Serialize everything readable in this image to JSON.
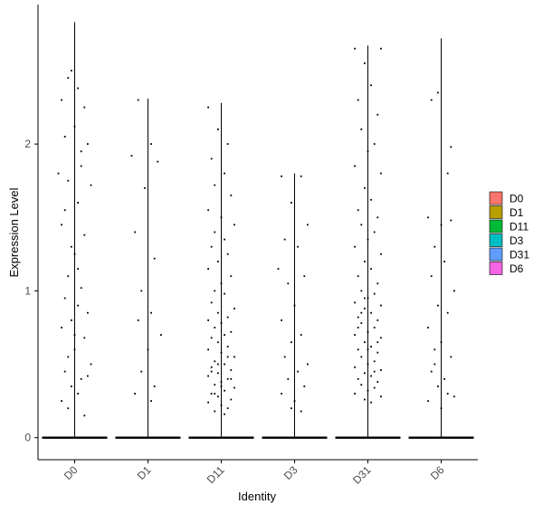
{
  "chart_data": {
    "type": "scatter",
    "subtype": "violin-jitter",
    "title": "",
    "xlabel": "Identity",
    "ylabel": "Expression Level",
    "categories": [
      "D0",
      "D1",
      "D11",
      "D3",
      "D31",
      "D6"
    ],
    "ylim": [
      -0.15,
      2.95
    ],
    "yticks": [
      0,
      1,
      2
    ],
    "grid": false,
    "legend_position": "right",
    "legend": [
      {
        "label": "D0",
        "color": "#F8766D"
      },
      {
        "label": "D1",
        "color": "#B79F00"
      },
      {
        "label": "D11",
        "color": "#00BA38"
      },
      {
        "label": "D3",
        "color": "#00BFC4"
      },
      {
        "label": "D31",
        "color": "#619CFF"
      },
      {
        "label": "D6",
        "color": "#F564E3"
      }
    ],
    "groups": [
      {
        "name": "D0",
        "max": 2.83,
        "points": [
          [
            0.45,
            2.5
          ],
          [
            0.4,
            2.45
          ],
          [
            0.55,
            2.38
          ],
          [
            0.3,
            2.3
          ],
          [
            0.65,
            2.25
          ],
          [
            0.5,
            2.12
          ],
          [
            0.35,
            2.05
          ],
          [
            0.7,
            2.0
          ],
          [
            0.6,
            1.95
          ],
          [
            0.25,
            1.8
          ],
          [
            0.4,
            1.75
          ],
          [
            0.75,
            1.72
          ],
          [
            0.55,
            1.6
          ],
          [
            0.3,
            1.45
          ],
          [
            0.65,
            1.38
          ],
          [
            0.45,
            1.3
          ],
          [
            0.5,
            1.25
          ],
          [
            0.4,
            1.1
          ],
          [
            0.6,
            1.02
          ],
          [
            0.35,
            0.95
          ],
          [
            0.55,
            0.9
          ],
          [
            0.7,
            0.85
          ],
          [
            0.45,
            0.8
          ],
          [
            0.3,
            0.75
          ],
          [
            0.65,
            0.68
          ],
          [
            0.5,
            0.6
          ],
          [
            0.4,
            0.55
          ],
          [
            0.75,
            0.5
          ],
          [
            0.35,
            0.45
          ],
          [
            0.6,
            0.4
          ],
          [
            0.45,
            0.35
          ],
          [
            0.55,
            0.3
          ],
          [
            0.3,
            0.25
          ],
          [
            0.7,
            0.42
          ],
          [
            0.5,
            0.7
          ],
          [
            0.4,
            0.2
          ],
          [
            0.65,
            0.15
          ],
          [
            0.55,
            1.15
          ],
          [
            0.35,
            1.55
          ],
          [
            0.6,
            1.85
          ]
        ]
      },
      {
        "name": "D1",
        "max": 2.31,
        "points": [
          [
            0.35,
            2.3
          ],
          [
            0.55,
            2.0
          ],
          [
            0.25,
            1.92
          ],
          [
            0.65,
            1.88
          ],
          [
            0.45,
            1.7
          ],
          [
            0.3,
            1.4
          ],
          [
            0.6,
            1.22
          ],
          [
            0.4,
            1.0
          ],
          [
            0.55,
            0.85
          ],
          [
            0.35,
            0.8
          ],
          [
            0.7,
            0.7
          ],
          [
            0.5,
            0.6
          ],
          [
            0.4,
            0.45
          ],
          [
            0.6,
            0.35
          ],
          [
            0.3,
            0.3
          ],
          [
            0.55,
            0.25
          ]
        ]
      },
      {
        "name": "D11",
        "max": 2.28,
        "points": [
          [
            0.3,
            2.25
          ],
          [
            0.45,
            2.1
          ],
          [
            0.6,
            2.0
          ],
          [
            0.35,
            1.9
          ],
          [
            0.55,
            1.8
          ],
          [
            0.4,
            1.72
          ],
          [
            0.65,
            1.65
          ],
          [
            0.3,
            1.55
          ],
          [
            0.5,
            1.5
          ],
          [
            0.7,
            1.45
          ],
          [
            0.4,
            1.4
          ],
          [
            0.55,
            1.35
          ],
          [
            0.35,
            1.3
          ],
          [
            0.6,
            1.25
          ],
          [
            0.45,
            1.2
          ],
          [
            0.3,
            1.15
          ],
          [
            0.65,
            1.1
          ],
          [
            0.5,
            1.05
          ],
          [
            0.4,
            1.0
          ],
          [
            0.55,
            0.98
          ],
          [
            0.35,
            0.92
          ],
          [
            0.7,
            0.88
          ],
          [
            0.45,
            0.85
          ],
          [
            0.6,
            0.82
          ],
          [
            0.3,
            0.8
          ],
          [
            0.5,
            0.78
          ],
          [
            0.4,
            0.75
          ],
          [
            0.65,
            0.72
          ],
          [
            0.55,
            0.7
          ],
          [
            0.35,
            0.68
          ],
          [
            0.45,
            0.65
          ],
          [
            0.6,
            0.62
          ],
          [
            0.3,
            0.6
          ],
          [
            0.5,
            0.58
          ],
          [
            0.7,
            0.55
          ],
          [
            0.4,
            0.52
          ],
          [
            0.55,
            0.5
          ],
          [
            0.35,
            0.48
          ],
          [
            0.65,
            0.46
          ],
          [
            0.45,
            0.44
          ],
          [
            0.3,
            0.42
          ],
          [
            0.6,
            0.4
          ],
          [
            0.5,
            0.38
          ],
          [
            0.4,
            0.36
          ],
          [
            0.7,
            0.34
          ],
          [
            0.55,
            0.32
          ],
          [
            0.35,
            0.3
          ],
          [
            0.45,
            0.28
          ],
          [
            0.65,
            0.26
          ],
          [
            0.3,
            0.24
          ],
          [
            0.5,
            0.22
          ],
          [
            0.6,
            0.2
          ],
          [
            0.4,
            0.18
          ],
          [
            0.55,
            0.16
          ],
          [
            0.35,
            0.45
          ],
          [
            0.45,
            0.5
          ],
          [
            0.5,
            0.35
          ],
          [
            0.6,
            0.55
          ],
          [
            0.4,
            0.3
          ],
          [
            0.65,
            0.4
          ]
        ]
      },
      {
        "name": "D3",
        "max": 1.8,
        "points": [
          [
            0.3,
            1.78
          ],
          [
            0.6,
            1.78
          ],
          [
            0.45,
            1.6
          ],
          [
            0.7,
            1.45
          ],
          [
            0.35,
            1.35
          ],
          [
            0.55,
            1.3
          ],
          [
            0.25,
            1.15
          ],
          [
            0.65,
            1.1
          ],
          [
            0.4,
            1.05
          ],
          [
            0.5,
            0.9
          ],
          [
            0.3,
            0.8
          ],
          [
            0.6,
            0.7
          ],
          [
            0.45,
            0.65
          ],
          [
            0.35,
            0.55
          ],
          [
            0.7,
            0.5
          ],
          [
            0.55,
            0.45
          ],
          [
            0.4,
            0.4
          ],
          [
            0.65,
            0.35
          ],
          [
            0.3,
            0.3
          ],
          [
            0.5,
            0.25
          ],
          [
            0.45,
            0.2
          ],
          [
            0.6,
            0.18
          ]
        ]
      },
      {
        "name": "D31",
        "max": 2.67,
        "points": [
          [
            0.3,
            2.65
          ],
          [
            0.7,
            2.65
          ],
          [
            0.45,
            2.55
          ],
          [
            0.55,
            2.4
          ],
          [
            0.35,
            2.3
          ],
          [
            0.65,
            2.2
          ],
          [
            0.4,
            2.1
          ],
          [
            0.6,
            2.0
          ],
          [
            0.5,
            1.95
          ],
          [
            0.3,
            1.85
          ],
          [
            0.7,
            1.8
          ],
          [
            0.45,
            1.7
          ],
          [
            0.55,
            1.62
          ],
          [
            0.35,
            1.55
          ],
          [
            0.65,
            1.5
          ],
          [
            0.4,
            1.45
          ],
          [
            0.6,
            1.4
          ],
          [
            0.5,
            1.35
          ],
          [
            0.3,
            1.3
          ],
          [
            0.7,
            1.25
          ],
          [
            0.45,
            1.2
          ],
          [
            0.55,
            1.15
          ],
          [
            0.35,
            1.1
          ],
          [
            0.65,
            1.05
          ],
          [
            0.4,
            1.0
          ],
          [
            0.6,
            0.98
          ],
          [
            0.5,
            0.95
          ],
          [
            0.3,
            0.92
          ],
          [
            0.7,
            0.9
          ],
          [
            0.45,
            0.88
          ],
          [
            0.55,
            0.85
          ],
          [
            0.35,
            0.82
          ],
          [
            0.65,
            0.8
          ],
          [
            0.4,
            0.78
          ],
          [
            0.6,
            0.75
          ],
          [
            0.5,
            0.72
          ],
          [
            0.3,
            0.7
          ],
          [
            0.7,
            0.68
          ],
          [
            0.45,
            0.65
          ],
          [
            0.55,
            0.62
          ],
          [
            0.35,
            0.6
          ],
          [
            0.65,
            0.58
          ],
          [
            0.4,
            0.55
          ],
          [
            0.6,
            0.52
          ],
          [
            0.5,
            0.5
          ],
          [
            0.3,
            0.48
          ],
          [
            0.7,
            0.46
          ],
          [
            0.45,
            0.44
          ],
          [
            0.55,
            0.42
          ],
          [
            0.35,
            0.4
          ],
          [
            0.65,
            0.38
          ],
          [
            0.4,
            0.36
          ],
          [
            0.6,
            0.34
          ],
          [
            0.5,
            0.32
          ],
          [
            0.3,
            0.3
          ],
          [
            0.7,
            0.28
          ],
          [
            0.45,
            0.26
          ],
          [
            0.55,
            0.24
          ],
          [
            0.35,
            0.75
          ],
          [
            0.65,
            0.65
          ],
          [
            0.4,
            0.85
          ],
          [
            0.6,
            0.45
          ],
          [
            0.5,
            0.6
          ],
          [
            0.45,
            0.95
          ]
        ]
      },
      {
        "name": "D6",
        "max": 2.72,
        "points": [
          [
            0.45,
            2.35
          ],
          [
            0.35,
            2.3
          ],
          [
            0.6,
            1.8
          ],
          [
            0.3,
            1.5
          ],
          [
            0.65,
            1.48
          ],
          [
            0.5,
            1.45
          ],
          [
            0.4,
            1.3
          ],
          [
            0.55,
            1.2
          ],
          [
            0.35,
            1.1
          ],
          [
            0.7,
            1.0
          ],
          [
            0.45,
            0.9
          ],
          [
            0.6,
            0.85
          ],
          [
            0.3,
            0.75
          ],
          [
            0.5,
            0.65
          ],
          [
            0.4,
            0.6
          ],
          [
            0.65,
            0.55
          ],
          [
            0.35,
            0.45
          ],
          [
            0.55,
            0.4
          ],
          [
            0.45,
            0.35
          ],
          [
            0.6,
            0.3
          ],
          [
            0.3,
            0.25
          ],
          [
            0.5,
            0.2
          ],
          [
            0.7,
            0.28
          ],
          [
            0.4,
            0.5
          ],
          [
            0.65,
            1.98
          ]
        ]
      }
    ]
  }
}
